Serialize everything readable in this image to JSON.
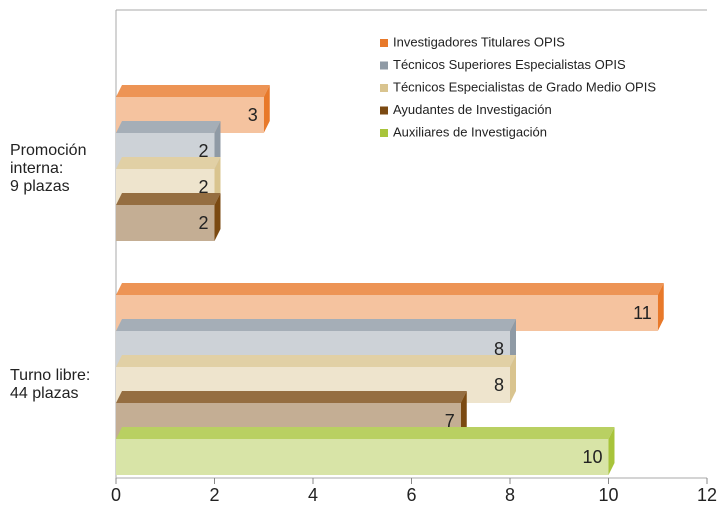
{
  "chart_data": {
    "type": "bar3d-horizontal",
    "categories": [
      [
        "Promoción",
        "interna:",
        "9 plazas"
      ],
      [
        "Turno libre:",
        "44 plazas"
      ]
    ],
    "series": [
      {
        "name": "Investigadores Titulares OPIS",
        "color": "#e8792a",
        "values": [
          3,
          11
        ]
      },
      {
        "name": "Técnicos Superiores Especialistas OPIS",
        "color": "#8f9aa5",
        "values": [
          2,
          8
        ]
      },
      {
        "name": "Técnicos Especialistas de Grado Medio OPIS",
        "color": "#d9c48f",
        "values": [
          2,
          8
        ]
      },
      {
        "name": "Ayudantes de Investigación",
        "color": "#7b4a12",
        "values": [
          2,
          7
        ]
      },
      {
        "name": "Auxiliares de Investigación",
        "color": "#a8c43b",
        "values": [
          null,
          10
        ]
      }
    ],
    "xlim": [
      0,
      12
    ],
    "xticks": [
      0,
      2,
      4,
      6,
      8,
      10,
      12
    ],
    "legend": "upper right"
  }
}
